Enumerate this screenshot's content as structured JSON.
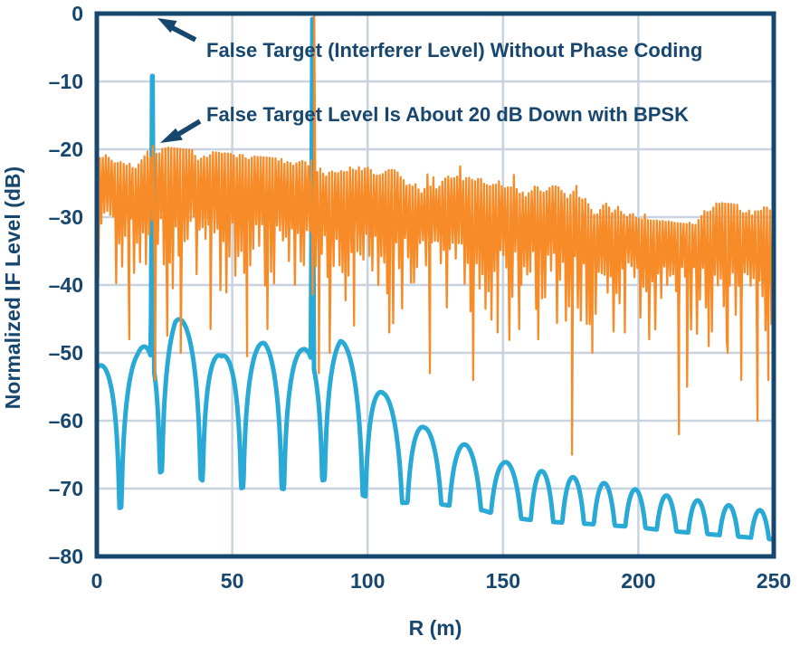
{
  "chart_data": {
    "type": "line",
    "title": "",
    "xlabel": "R (m)",
    "ylabel": "Normalized IF Level (dB)",
    "xlim": [
      0,
      250
    ],
    "ylim": [
      -80,
      0
    ],
    "grid": true,
    "legend_position": "none",
    "x_ticks": {
      "values": [
        0,
        50,
        100,
        150,
        200,
        250
      ],
      "labels": [
        "0",
        "50",
        "100",
        "150",
        "200",
        "250"
      ]
    },
    "y_ticks": {
      "values": [
        0,
        -10,
        -20,
        -30,
        -40,
        -50,
        -60,
        -70,
        -80
      ],
      "labels": [
        "0",
        "–10",
        "–20",
        "–30",
        "–40",
        "–50",
        "–60",
        "–70",
        "–80"
      ]
    },
    "colors": {
      "background": "#FFFFFF",
      "axis_frame": "#17476F",
      "gridline": "#C9D3DF",
      "text": "#17476F",
      "arrow": "#17476F",
      "series_no_coding": "#29A9D6",
      "series_bpsk": "#F68B28"
    },
    "annotations": [
      {
        "text": "False Target (Interferer Level) Without Phase Coding",
        "points_to": {
          "x_m": 20,
          "y_db": 0
        }
      },
      {
        "text": "False Target Level Is About 20 dB Down with BPSK",
        "points_to": {
          "x_m": 20,
          "y_db": -19
        }
      }
    ],
    "series": [
      {
        "name": "IF range response without phase coding (sinc lobes, false target spike at 20 m, real target at 80 m)",
        "color_key": "series_no_coding",
        "key_values": {
          "false_target_spike": {
            "x_m": 20.5,
            "peak_db": -0.2
          },
          "real_target_spike": {
            "x_m": 79.6,
            "peak_db": -0.8
          },
          "level_at_0_m_db": -53,
          "sidelobe_peaks_db_near": -48,
          "level_at_250_m_db": -74,
          "null_spacing_m": 15
        },
        "model": {
          "step_m": 0.2,
          "env_pts": [
            [
              0,
              -52
            ],
            [
              8.7,
              -51
            ],
            [
              15,
              -50
            ],
            [
              22,
              -46.5
            ],
            [
              29,
              -44.5
            ],
            [
              38.7,
              -47.5
            ],
            [
              46,
              -50.5
            ],
            [
              53.7,
              -49
            ],
            [
              62,
              -48.5
            ],
            [
              68.7,
              -49.5
            ],
            [
              76,
              -49.5
            ],
            [
              83.7,
              -48.5
            ],
            [
              90,
              -48
            ],
            [
              106,
              -56
            ],
            [
              121,
              -61
            ],
            [
              136,
              -63.5
            ],
            [
              150,
              -66
            ],
            [
              165,
              -67.5
            ],
            [
              185,
              -69
            ],
            [
              210,
              -71
            ],
            [
              250,
              -73.5
            ]
          ],
          "depth_pts": [
            [
              0,
              22
            ],
            [
              95,
              20
            ],
            [
              121,
              11
            ],
            [
              143,
              8.5
            ],
            [
              200,
              5.5
            ],
            [
              250,
              4
            ]
          ],
          "null_start_m": 8.7,
          "period_main_m": 15,
          "period_break_m": 158.7,
          "period_far_m": 11.5,
          "spikes": [
            {
              "x": 20.5,
              "peak_db": -0.2,
              "slope_db_per_m": 90
            },
            {
              "x": 79.6,
              "peak_db": -0.8,
              "slope_db_per_m": 90
            }
          ]
        }
      },
      {
        "name": "IF level with BPSK phase coding (noise floor, real target spike at 80 m, false target about 20 dB down)",
        "color_key": "series_bpsk",
        "key_values": {
          "real_target_spike": {
            "x_m": 80.3,
            "peak_db": -0.3
          },
          "false_target_peak": {
            "x_m": 20.7,
            "peak_db": -19.5
          },
          "noise_top_at_0_m_db": -20.5,
          "noise_top_at_250_m_db": -30.5,
          "typical_noise_bottom_db": -44,
          "deepest_dip": {
            "x_m": 175.5,
            "db": -65
          }
        },
        "model": {
          "seed": 7,
          "step_m": 0.55,
          "top_base_db": -20.5,
          "top_slope_db_per_m": -0.04,
          "core_depth_db": 8,
          "needle_depth_db": 11,
          "dips": [
            [
              12,
              -48
            ],
            [
              21.5,
              -54
            ],
            [
              26,
              -47.5
            ],
            [
              31,
              -50
            ],
            [
              42,
              -46.5
            ],
            [
              55.5,
              -50.5
            ],
            [
              63,
              -46.5
            ],
            [
              82,
              -53
            ],
            [
              86,
              -50
            ],
            [
              95,
              -46
            ],
            [
              108,
              -47
            ],
            [
              123,
              -53
            ],
            [
              139,
              -54
            ],
            [
              148,
              -47
            ],
            [
              156,
              -46.5
            ],
            [
              163,
              -48
            ],
            [
              175.5,
              -65
            ],
            [
              183,
              -50
            ],
            [
              195,
              -47
            ],
            [
              204,
              -48
            ],
            [
              215,
              -62
            ],
            [
              218,
              -55
            ],
            [
              226,
              -49
            ],
            [
              233,
              -50
            ],
            [
              238,
              -54
            ],
            [
              244,
              -60
            ],
            [
              248,
              -54
            ]
          ],
          "spikes": [
            {
              "x": 20.7,
              "peak_db": -19.5
            },
            {
              "x": 80.3,
              "peak_db": -0.3
            }
          ]
        }
      }
    ]
  }
}
